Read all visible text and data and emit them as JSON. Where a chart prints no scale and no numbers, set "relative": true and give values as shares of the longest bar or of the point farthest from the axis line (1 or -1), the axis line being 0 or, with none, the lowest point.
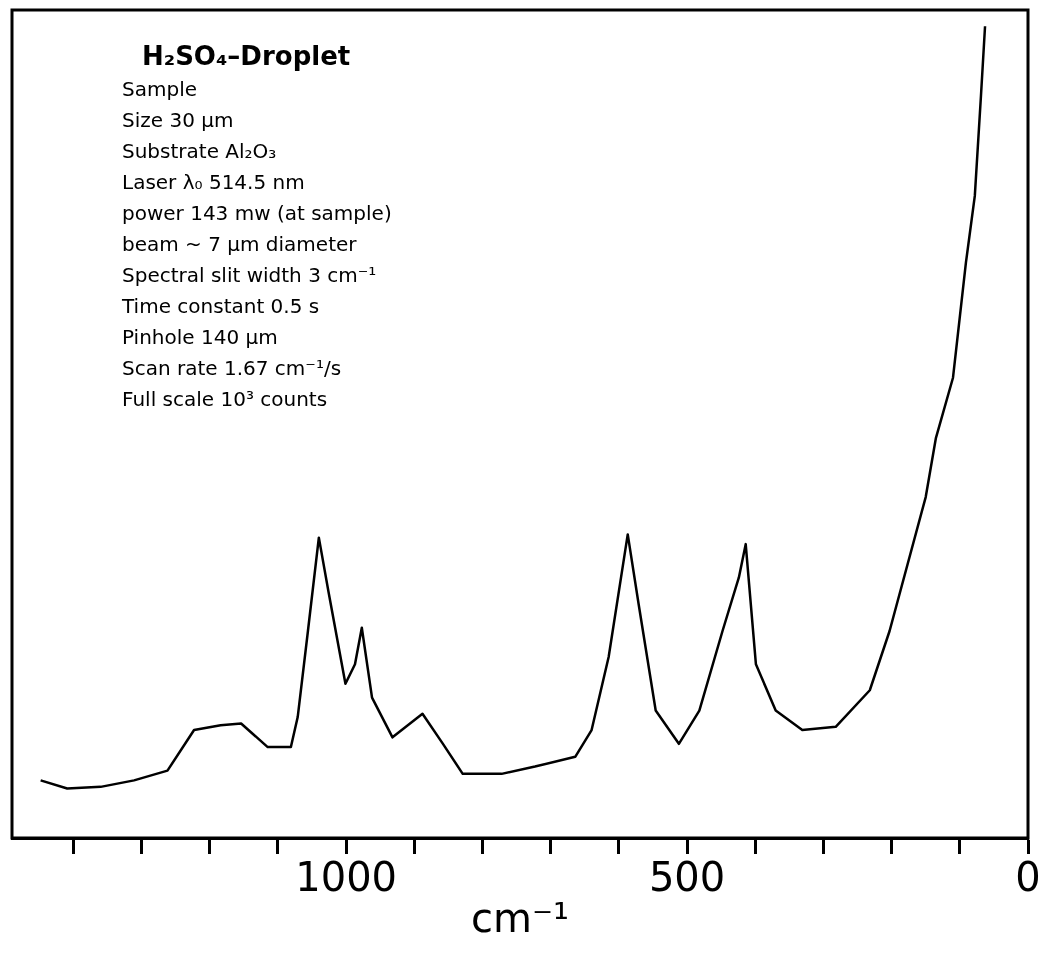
{
  "chart_data": {
    "type": "line",
    "relative": true,
    "xlabel": "cm⁻¹",
    "color": "#000000",
    "marker": "none",
    "xlim": [
      1490,
      0
    ],
    "xticks": [
      {
        "value": 1400,
        "label": null
      },
      {
        "value": 1300,
        "label": null
      },
      {
        "value": 1200,
        "label": null
      },
      {
        "value": 1100,
        "label": null
      },
      1000,
      {
        "value": 900,
        "label": null
      },
      {
        "value": 800,
        "label": null
      },
      {
        "value": 700,
        "label": null
      },
      {
        "value": 600,
        "label": null
      },
      500,
      {
        "value": 400,
        "label": null
      },
      {
        "value": 300,
        "label": null
      },
      {
        "value": 200,
        "label": null
      },
      {
        "value": 100,
        "label": null
      },
      0
    ],
    "x": [
      1448,
      1409,
      1360,
      1311,
      1262,
      1223,
      1184,
      1154,
      1115,
      1081,
      1071,
      1056,
      1040,
      1026,
      1001,
      987,
      977,
      962,
      932,
      888,
      858,
      829,
      772,
      723,
      664,
      640,
      615,
      587,
      571,
      546,
      512,
      482,
      448,
      424,
      414,
      399,
      370,
      331,
      282,
      232,
      203,
      150,
      135,
      110,
      91,
      78,
      69,
      63
    ],
    "values": [
      0.071,
      0.061,
      0.063,
      0.071,
      0.083,
      0.133,
      0.139,
      0.141,
      0.112,
      0.112,
      0.149,
      0.255,
      0.37,
      0.304,
      0.19,
      0.214,
      0.259,
      0.173,
      0.124,
      0.153,
      0.116,
      0.079,
      0.079,
      0.088,
      0.1,
      0.133,
      0.223,
      0.374,
      0.288,
      0.157,
      0.116,
      0.157,
      0.255,
      0.321,
      0.362,
      0.214,
      0.157,
      0.133,
      0.137,
      0.182,
      0.255,
      0.42,
      0.493,
      0.567,
      0.709,
      0.791,
      0.914,
      1.0
    ],
    "annotations": [
      "H₂SO₄–Droplet",
      "Sample",
      "Size 30 µm",
      "Substrate Al₂O₃",
      "Laser λ₀ 514.5 nm",
      "power 143 mw (at sample)",
      "beam ~ 7 µm diameter",
      "Spectral slit width 3 cm⁻¹",
      "Time constant 0.5 s",
      "Pinhole 140 µm",
      "Scan rate 1.67 cm⁻¹/s",
      "Full scale 10³ counts"
    ]
  }
}
